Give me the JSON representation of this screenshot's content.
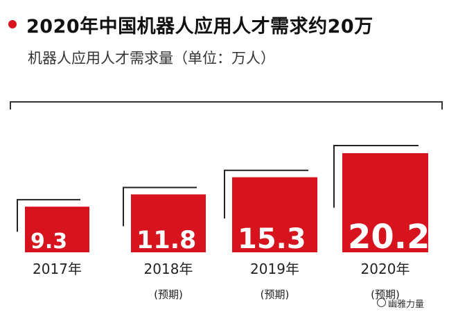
{
  "header": {
    "title": "2020年中国机器人应用人才需求约20万",
    "subtitle": "机器人应用人才需求量（单位：万人）"
  },
  "colors": {
    "accent": "#d7141e",
    "frame": "#222222",
    "text": "#222222"
  },
  "watermark": "幽雅力量",
  "chart_data": {
    "type": "bar",
    "title": "2020年中国机器人应用人才需求约20万",
    "subtitle": "机器人应用人才需求量（单位：万人）",
    "categories": [
      "2017年",
      "2018年",
      "2019年",
      "2020年"
    ],
    "sublabels": [
      "",
      "(预期)",
      "(预期)",
      "(预期)"
    ],
    "values": [
      9.3,
      11.8,
      15.3,
      20.2
    ],
    "value_labels": [
      "9.3",
      "11.8",
      "15.3",
      "20.2"
    ],
    "ylim": [
      0,
      20.2
    ],
    "xlabel": "",
    "ylabel": "",
    "grid": false,
    "legend": "none"
  }
}
